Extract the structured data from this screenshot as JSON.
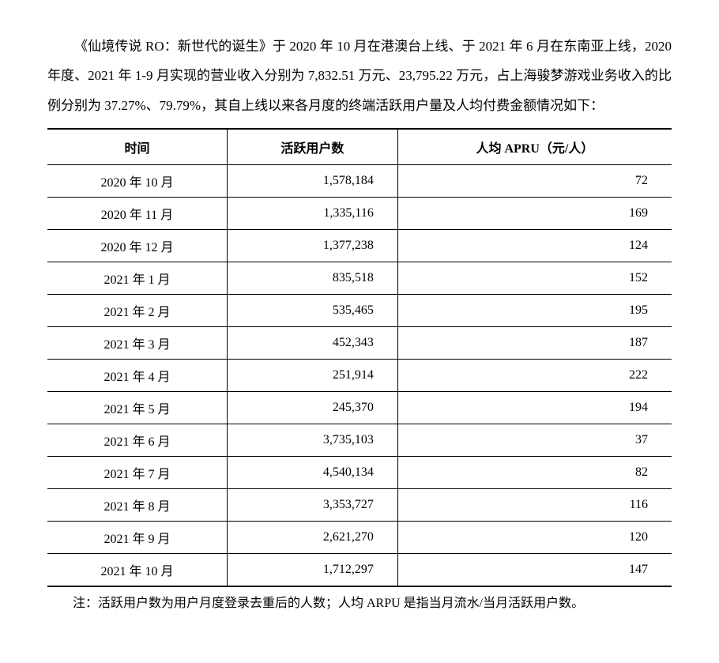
{
  "paragraph": "《仙境传说 RO：新世代的诞生》于 2020 年 10 月在港澳台上线、于 2021 年 6 月在东南亚上线，2020 年度、2021 年 1-9 月实现的营业收入分别为 7,832.51 万元、23,795.22 万元，占上海骏梦游戏业务收入的比例分别为 37.27%、79.79%，其自上线以来各月度的终端活跃用户量及人均付费金额情况如下：",
  "table": {
    "columns": [
      "时间",
      "活跃用户数",
      "人均 APRU（元/人）"
    ],
    "col_alignment": [
      "center",
      "right",
      "right"
    ],
    "rows": [
      [
        "2020 年 10 月",
        "1,578,184",
        "72"
      ],
      [
        "2020 年 11 月",
        "1,335,116",
        "169"
      ],
      [
        "2020 年 12 月",
        "1,377,238",
        "124"
      ],
      [
        "2021 年 1 月",
        "835,518",
        "152"
      ],
      [
        "2021 年 2 月",
        "535,465",
        "195"
      ],
      [
        "2021 年 3 月",
        "452,343",
        "187"
      ],
      [
        "2021 年 4 月",
        "251,914",
        "222"
      ],
      [
        "2021 年 5 月",
        "245,370",
        "194"
      ],
      [
        "2021 年 6 月",
        "3,735,103",
        "37"
      ],
      [
        "2021 年 7 月",
        "4,540,134",
        "82"
      ],
      [
        "2021 年 8 月",
        "3,353,727",
        "116"
      ],
      [
        "2021 年 9 月",
        "2,621,270",
        "120"
      ],
      [
        "2021 年 10 月",
        "1,712,297",
        "147"
      ]
    ],
    "border_color": "#000000",
    "header_fontweight": "bold"
  },
  "note": "注：活跃用户数为用户月度登录去重后的人数；人均 ARPU 是指当月流水/当月活跃用户数。"
}
